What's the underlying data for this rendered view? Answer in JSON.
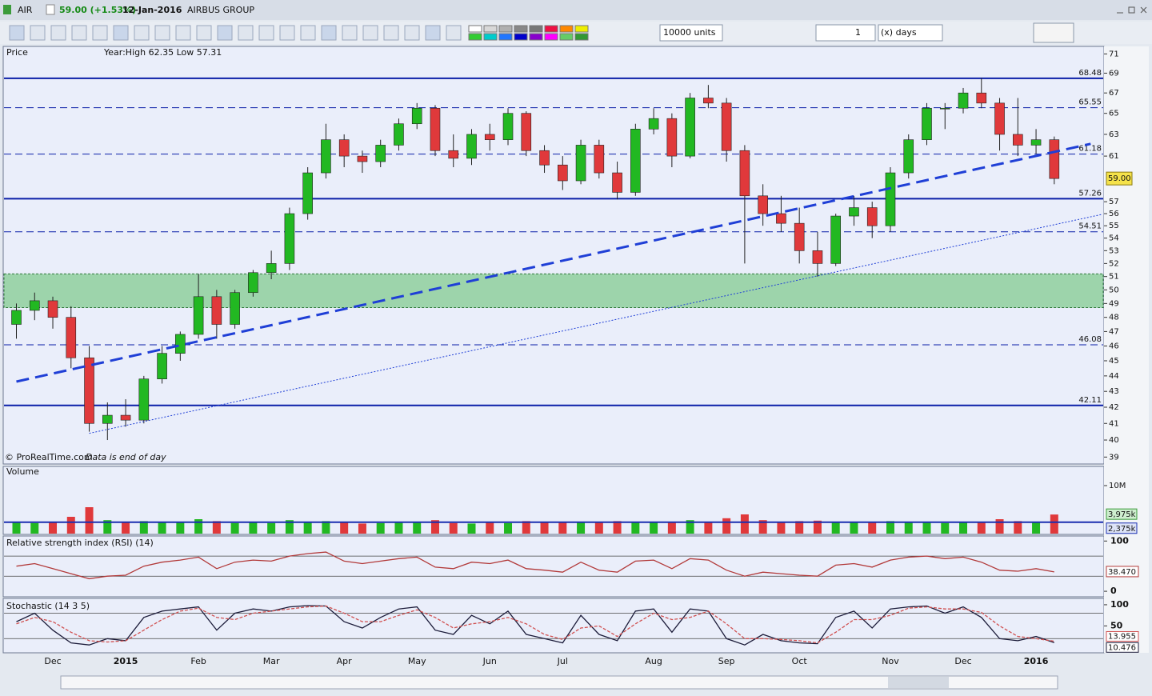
{
  "header": {
    "symbol": "AIR",
    "quote": "59.00 (+1.53%)",
    "date": "12-Jan-2016",
    "name": "AIRBUS GROUP"
  },
  "toolbar": {
    "quantity": "10000 units",
    "period_count": "1",
    "period_unit": "(x) days"
  },
  "chart_data": [
    {
      "type": "candlestick",
      "title": "Price",
      "subtitle": "Year:High 62.35 Low 57.31",
      "annotations": [
        "© ProRealTime.com",
        "Data is end of day"
      ],
      "categories": [
        null,
        null,
        "Dec",
        null,
        null,
        null,
        "2015",
        null,
        null,
        null,
        "Feb",
        null,
        null,
        null,
        "Mar",
        null,
        null,
        null,
        "Apr",
        null,
        null,
        null,
        "May",
        null,
        null,
        null,
        "Jun",
        null,
        null,
        null,
        "Jul",
        null,
        null,
        null,
        null,
        "Aug",
        null,
        null,
        null,
        "Sep",
        null,
        null,
        null,
        "Oct",
        null,
        null,
        null,
        null,
        "Nov",
        null,
        null,
        null,
        "Dec",
        null,
        null,
        null,
        "2016",
        null
      ],
      "open": [
        47.5,
        48.5,
        49.2,
        48,
        45.2,
        41,
        41.5,
        41.2,
        43.8,
        45.5,
        46.8,
        49.5,
        47.5,
        49.8,
        51.3,
        52,
        56,
        59.5,
        62.5,
        61,
        60.5,
        62,
        64,
        65.5,
        61.5,
        60.8,
        63,
        62.5,
        65,
        61.5,
        60.2,
        58.8,
        62,
        59.5,
        57.8,
        63.5,
        64.5,
        61,
        66.5,
        66,
        61.5,
        57.5,
        56,
        55.2,
        53,
        52,
        55.8,
        56.5,
        55,
        59.5,
        62.5,
        65.5,
        65.5,
        67,
        66,
        63,
        62,
        62.5
      ],
      "high": [
        49,
        49.8,
        49.5,
        48.8,
        46,
        42.3,
        42.5,
        44,
        46,
        47,
        51.2,
        50,
        50,
        51.5,
        53,
        56.5,
        60,
        64,
        63,
        61.5,
        62.5,
        64.5,
        66,
        65.8,
        63,
        63.5,
        64,
        65.5,
        65.2,
        62,
        61,
        62.5,
        62.5,
        60.5,
        64,
        65.5,
        65,
        67,
        67.8,
        66.5,
        62,
        58.5,
        57.5,
        56.5,
        54.5,
        56,
        57.5,
        57,
        60,
        63,
        66,
        66,
        67.5,
        68.5,
        66.5,
        66.5,
        63.5,
        62.8
      ],
      "low": [
        46.5,
        47.8,
        47.2,
        44.5,
        40.5,
        40,
        40.8,
        41,
        43.5,
        45,
        46.5,
        46.5,
        47.2,
        49.5,
        50.8,
        51.5,
        55.5,
        59,
        60,
        59.5,
        60,
        61.5,
        63.5,
        61,
        60,
        60.2,
        61.5,
        62,
        61,
        59.5,
        58,
        58.5,
        59,
        57.2,
        57.5,
        63,
        60,
        60.8,
        65.5,
        60.5,
        52,
        55,
        54.5,
        52,
        51,
        51.8,
        55,
        54,
        54.5,
        59,
        62,
        63.5,
        65,
        65.5,
        61.5,
        61,
        61.2,
        58.5
      ],
      "close": [
        48.5,
        49.2,
        48,
        45.2,
        41,
        41.5,
        41.2,
        43.8,
        45.5,
        46.8,
        49.5,
        47.5,
        49.8,
        51.3,
        52,
        56,
        59.5,
        62.5,
        61,
        60.5,
        62,
        64,
        65.5,
        61.5,
        60.8,
        63,
        62.5,
        65,
        61.5,
        60.2,
        58.8,
        62,
        59.5,
        57.8,
        63.5,
        64.5,
        61,
        66.5,
        66,
        61.5,
        57.5,
        56,
        55.2,
        53,
        52,
        55.8,
        56.5,
        55,
        59.5,
        62.5,
        65.5,
        65.5,
        67,
        66,
        63,
        62,
        62.5,
        59
      ],
      "up_color": "#22b822",
      "down_color": "#e0393b",
      "log_scale": true,
      "ylim": [
        38.6,
        71.8
      ],
      "yticks": [
        39,
        40,
        41,
        42,
        43,
        44,
        45,
        46,
        47,
        48,
        49,
        50,
        51,
        52,
        53,
        54,
        55,
        56,
        57,
        61,
        63,
        65,
        67,
        69,
        71
      ],
      "last_price": {
        "value": 59,
        "label": "59.00"
      },
      "levels": [
        {
          "value": 68.48,
          "style": "solid"
        },
        {
          "value": 65.55,
          "style": "dashed"
        },
        {
          "value": 61.18,
          "style": "dashed"
        },
        {
          "value": 57.26,
          "style": "solid"
        },
        {
          "value": 54.51,
          "style": "dashed"
        },
        {
          "value": 46.08,
          "style": "dashed"
        },
        {
          "value": 42.11,
          "style": "solid"
        }
      ],
      "level_color": "#0a1fa8",
      "zone": [
        48.7,
        51.2
      ],
      "zone_color": "#5cbf6a",
      "trendlines": [
        {
          "from": [
            0,
            43.63
          ],
          "to": [
            59,
            62.12
          ],
          "style": "dashed"
        },
        {
          "from": [
            4,
            40.4
          ],
          "to": [
            59.6,
            55.93
          ],
          "style": "dotted"
        }
      ],
      "trend_color": "#1f3fd6"
    },
    {
      "type": "bar",
      "title": "Volume",
      "values": [
        2.5,
        2.2,
        2.4,
        3.5,
        5.5,
        2.8,
        2.3,
        2.6,
        2.5,
        2.4,
        3,
        2.6,
        2.2,
        2.3,
        2.2,
        2.8,
        2.5,
        2.6,
        2.4,
        2.1,
        2.2,
        2.3,
        2.5,
        2.8,
        2.2,
        2.1,
        2.3,
        2.2,
        2.6,
        2.4,
        2.3,
        2.5,
        2.4,
        2.6,
        2.3,
        2.5,
        2.4,
        2.8,
        2.3,
        3.2,
        4,
        2.8,
        2.5,
        2.6,
        2.7,
        2.4,
        2.3,
        2.5,
        2.6,
        2.5,
        2.3,
        2.2,
        2.4,
        2.5,
        3,
        2.6,
        2.4,
        3.975
      ],
      "ylim": [
        0,
        14
      ],
      "yticks": [
        {
          "value": 10,
          "label": "10M"
        }
      ],
      "last_label": {
        "value": 3.975,
        "label": "3,975k"
      },
      "average": {
        "value": 2.375,
        "label": "2,375k"
      },
      "average_color": "#1a2fb0"
    },
    {
      "type": "line",
      "title": "Relative strength index (RSI) (14)",
      "values": [
        50,
        55,
        45,
        35,
        25,
        30,
        32,
        50,
        58,
        62,
        68,
        45,
        58,
        62,
        60,
        70,
        75,
        78,
        60,
        55,
        60,
        65,
        68,
        48,
        45,
        58,
        55,
        62,
        45,
        42,
        38,
        58,
        42,
        38,
        60,
        62,
        45,
        65,
        62,
        42,
        30,
        38,
        35,
        32,
        30,
        52,
        55,
        48,
        62,
        68,
        70,
        65,
        68,
        58,
        42,
        40,
        45,
        38.47
      ],
      "color": "#b23a3a",
      "ylim": [
        -11,
        110
      ],
      "yticks": [
        0,
        100
      ],
      "hlines": [
        30,
        70
      ],
      "last_label": {
        "value": 38.47,
        "label": "38.470"
      }
    },
    {
      "type": "line",
      "title": "Stochastic (14 3 5)",
      "ylim": [
        -13.5,
        115
      ],
      "yticks": [
        50,
        100
      ],
      "hlines": [
        20,
        80
      ],
      "series": [
        {
          "color": "#1c1c3a",
          "values": [
            60,
            80,
            40,
            10,
            5,
            20,
            15,
            70,
            85,
            90,
            95,
            40,
            80,
            90,
            85,
            95,
            98,
            97,
            60,
            45,
            70,
            90,
            95,
            40,
            30,
            75,
            55,
            85,
            30,
            20,
            10,
            75,
            30,
            15,
            85,
            90,
            35,
            90,
            85,
            20,
            5,
            30,
            15,
            10,
            8,
            70,
            85,
            45,
            90,
            95,
            97,
            80,
            95,
            70,
            20,
            15,
            25,
            10.476
          ]
        },
        {
          "color": "#d05050",
          "values": [
            55,
            70,
            60,
            35,
            15,
            12,
            15,
            40,
            65,
            85,
            92,
            70,
            65,
            80,
            85,
            90,
            95,
            97,
            80,
            60,
            60,
            75,
            88,
            70,
            45,
            55,
            60,
            70,
            55,
            30,
            18,
            45,
            50,
            25,
            55,
            80,
            65,
            70,
            85,
            55,
            20,
            20,
            18,
            15,
            10,
            35,
            65,
            65,
            75,
            92,
            95,
            90,
            90,
            82,
            50,
            25,
            20,
            13.955
          ]
        }
      ]
    }
  ]
}
